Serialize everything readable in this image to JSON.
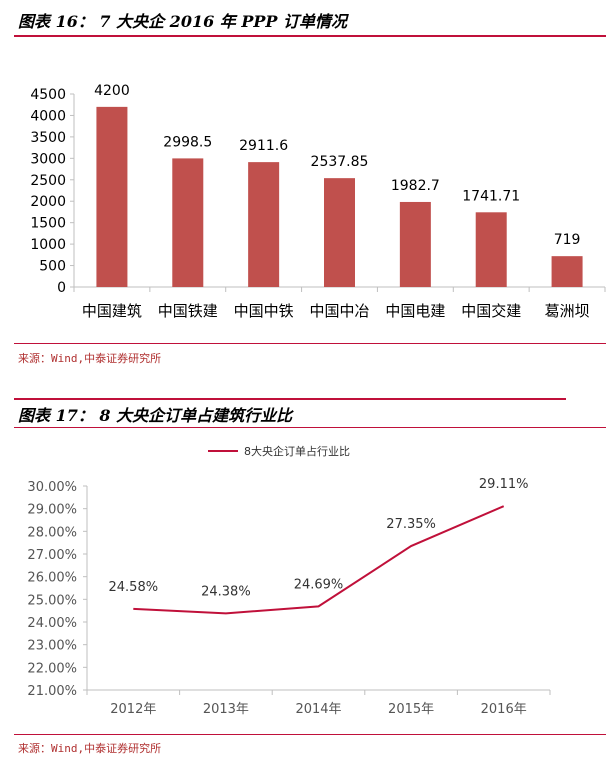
{
  "colors": {
    "accent": "#c0504d",
    "line": "#c0103a",
    "rule": "#c0103a",
    "axis": "#bfbfbf"
  },
  "figure1": {
    "title": "图表 16： 7 大央企 2016 年 PPP 订单情况",
    "source": "来源：Wind,中泰证券研究所"
  },
  "figure2": {
    "title": "图表 17： 8 大央企订单占建筑行业比",
    "source": "来源：Wind,中泰证券研究所"
  },
  "chart_data": [
    {
      "type": "bar",
      "title": "",
      "categories": [
        "中国建筑",
        "中国铁建",
        "中国中铁",
        "中国中冶",
        "中国电建",
        "中国交建",
        "葛洲坝"
      ],
      "values": [
        4200,
        2998.5,
        2911.6,
        2537.85,
        1982.7,
        1741.71,
        719
      ],
      "value_labels": [
        "4200",
        "2998.5",
        "2911.6",
        "2537.85",
        "1982.7",
        "1741.71",
        "719"
      ],
      "ylim": [
        0,
        4500
      ],
      "yticks": [
        "0",
        "500",
        "1000",
        "1500",
        "2000",
        "2500",
        "3000",
        "3500",
        "4000",
        "4500"
      ],
      "grid": false,
      "xlabel": "",
      "ylabel": ""
    },
    {
      "type": "line",
      "title": "",
      "categories": [
        "2012年",
        "2013年",
        "2014年",
        "2015年",
        "2016年"
      ],
      "series": [
        {
          "name": "8大央企订单占行业比",
          "values": [
            24.58,
            24.38,
            24.69,
            27.35,
            29.11
          ],
          "value_labels": [
            "24.58%",
            "24.38%",
            "24.69%",
            "27.35%",
            "29.11%"
          ]
        }
      ],
      "ylim": [
        21,
        30
      ],
      "yticks": [
        "21.00%",
        "22.00%",
        "23.00%",
        "24.00%",
        "25.00%",
        "26.00%",
        "27.00%",
        "28.00%",
        "29.00%",
        "30.00%"
      ],
      "legend": "top",
      "grid": false,
      "xlabel": "",
      "ylabel": ""
    }
  ]
}
